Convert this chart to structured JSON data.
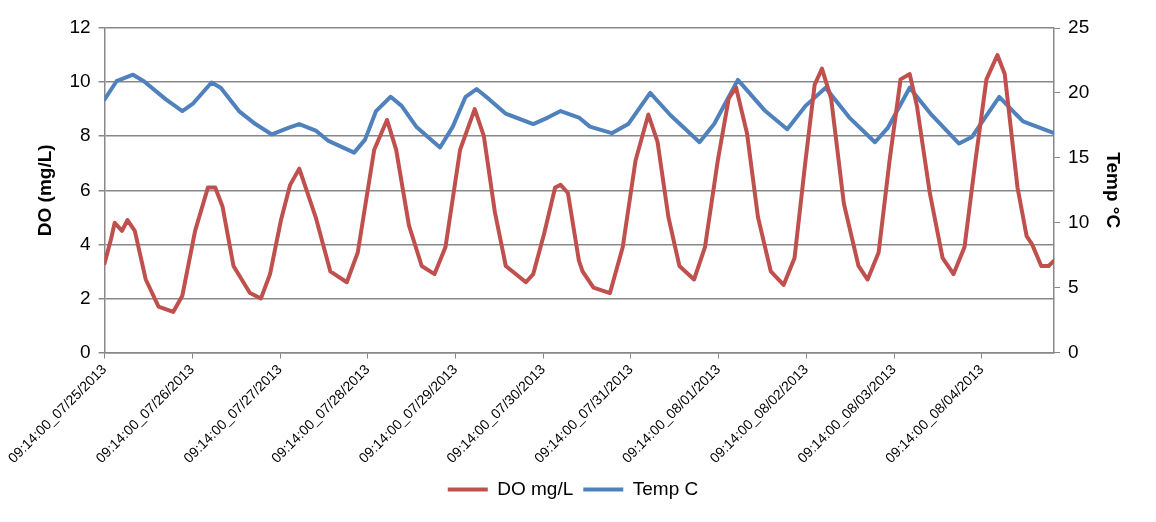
{
  "chart_data": {
    "type": "line",
    "ylabel": "DO (mg/L)",
    "y2label": "Temp °C",
    "xlim": [
      "2013-07-25T09:14",
      "2013-08-05T05:00"
    ],
    "xticks": [
      {
        "value": "2013-07-25T09:14",
        "label": "09:14:00_07/25/2013"
      },
      {
        "value": "2013-07-26T09:14",
        "label": "09:14:00_07/26/2013"
      },
      {
        "value": "2013-07-27T09:14",
        "label": "09:14:00_07/27/2013"
      },
      {
        "value": "2013-07-28T09:14",
        "label": "09:14:00_07/28/2013"
      },
      {
        "value": "2013-07-29T09:14",
        "label": "09:14:00_07/29/2013"
      },
      {
        "value": "2013-07-30T09:14",
        "label": "09:14:00_07/30/2013"
      },
      {
        "value": "2013-07-31T09:14",
        "label": "09:14:00_07/31/2013"
      },
      {
        "value": "2013-08-01T09:14",
        "label": "09:14:00_08/01/2013"
      },
      {
        "value": "2013-08-02T09:14",
        "label": "09:14:00_08/02/2013"
      },
      {
        "value": "2013-08-03T09:14",
        "label": "09:14:00_08/03/2013"
      },
      {
        "value": "2013-08-04T09:14",
        "label": "09:14:00_08/04/2013"
      }
    ],
    "ylim": [
      0,
      12
    ],
    "yticks": [
      0,
      2,
      4,
      6,
      8,
      10,
      12
    ],
    "y2lim": [
      0,
      25
    ],
    "y2ticks": [
      0,
      5,
      10,
      15,
      20,
      25
    ],
    "grid": "y",
    "legend": "bottom",
    "marker": "none",
    "line_style": "solid",
    "series": [
      {
        "name": "DO mg/L",
        "color": "#c0504d",
        "axis": "y",
        "x": [
          "2013-07-25T09:14",
          "2013-07-25T11:00",
          "2013-07-25T12:00",
          "2013-07-25T14:00",
          "2013-07-25T15:30",
          "2013-07-25T17:30",
          "2013-07-25T20:30",
          "2013-07-26T00:00",
          "2013-07-26T04:00",
          "2013-07-26T06:30",
          "2013-07-26T10:00",
          "2013-07-26T13:30",
          "2013-07-26T15:30",
          "2013-07-26T17:30",
          "2013-07-26T20:30",
          "2013-07-27T01:00",
          "2013-07-27T04:00",
          "2013-07-27T06:30",
          "2013-07-27T09:30",
          "2013-07-27T12:00",
          "2013-07-27T14:30",
          "2013-07-27T16:00",
          "2013-07-27T19:00",
          "2013-07-27T23:00",
          "2013-07-28T03:30",
          "2013-07-28T06:30",
          "2013-07-28T11:00",
          "2013-07-28T14:30",
          "2013-07-28T17:00",
          "2013-07-28T20:30",
          "2013-07-29T00:00",
          "2013-07-29T03:30",
          "2013-07-29T06:30",
          "2013-07-29T10:30",
          "2013-07-29T14:30",
          "2013-07-29T17:00",
          "2013-07-29T20:00",
          "2013-07-29T23:00",
          "2013-07-30T04:30",
          "2013-07-30T06:30",
          "2013-07-30T09:30",
          "2013-07-30T12:30",
          "2013-07-30T14:00",
          "2013-07-30T16:00",
          "2013-07-30T19:00",
          "2013-07-30T20:00",
          "2013-07-30T23:00",
          "2013-07-31T03:30",
          "2013-07-31T07:00",
          "2013-07-31T10:30",
          "2013-07-31T14:00",
          "2013-07-31T16:30",
          "2013-07-31T19:30",
          "2013-07-31T22:30",
          "2013-08-01T02:30",
          "2013-08-01T05:30",
          "2013-08-01T09:00",
          "2013-08-01T12:00",
          "2013-08-01T14:00",
          "2013-08-01T17:00",
          "2013-08-01T20:00",
          "2013-08-01T23:30",
          "2013-08-02T03:00",
          "2013-08-02T06:00",
          "2013-08-02T09:00",
          "2013-08-02T11:30",
          "2013-08-02T13:30",
          "2013-08-02T16:00",
          "2013-08-02T19:30",
          "2013-08-02T23:30",
          "2013-08-03T02:00",
          "2013-08-03T05:00",
          "2013-08-03T08:00",
          "2013-08-03T11:00",
          "2013-08-03T13:30",
          "2013-08-03T15:30",
          "2013-08-03T19:00",
          "2013-08-03T22:30",
          "2013-08-04T01:30",
          "2013-08-04T04:30",
          "2013-08-04T07:30",
          "2013-08-04T10:30",
          "2013-08-04T13:30",
          "2013-08-04T15:30",
          "2013-08-04T19:00",
          "2013-08-04T21:30",
          "2013-08-04T23:00",
          "2013-08-05T01:30",
          "2013-08-05T03:30",
          "2013-08-05T05:00"
        ],
        "values": [
          3.3,
          4.2,
          4.8,
          4.5,
          4.9,
          4.5,
          2.7,
          1.7,
          1.5,
          2.1,
          4.5,
          6.1,
          6.1,
          5.4,
          3.2,
          2.2,
          2.0,
          2.9,
          4.9,
          6.2,
          6.8,
          6.2,
          5.0,
          3.0,
          2.6,
          3.7,
          7.5,
          8.6,
          7.5,
          4.7,
          3.2,
          2.9,
          3.9,
          7.5,
          9.0,
          8.0,
          5.2,
          3.2,
          2.6,
          2.9,
          4.4,
          6.1,
          6.2,
          5.9,
          3.4,
          3.0,
          2.4,
          2.2,
          3.9,
          7.1,
          8.8,
          7.8,
          5.0,
          3.2,
          2.7,
          3.9,
          7.1,
          9.4,
          9.8,
          8.1,
          5.0,
          3.0,
          2.5,
          3.5,
          7.1,
          9.9,
          10.5,
          9.4,
          5.5,
          3.2,
          2.7,
          3.7,
          7.1,
          10.1,
          10.3,
          9.1,
          5.9,
          3.5,
          2.9,
          3.9,
          7.1,
          10.1,
          11.0,
          10.3,
          6.1,
          4.3,
          4.0,
          3.2,
          3.2,
          3.4
        ]
      },
      {
        "name": "Temp C",
        "color": "#4f81bd",
        "axis": "y2",
        "x": [
          "2013-07-25T09:14",
          "2013-07-25T12:30",
          "2013-07-25T17:00",
          "2013-07-25T20:00",
          "2013-07-26T02:00",
          "2013-07-26T06:30",
          "2013-07-26T09:30",
          "2013-07-26T14:30",
          "2013-07-26T17:00",
          "2013-07-26T22:00",
          "2013-07-27T02:30",
          "2013-07-27T07:00",
          "2013-07-27T11:30",
          "2013-07-27T14:30",
          "2013-07-27T19:00",
          "2013-07-27T22:30",
          "2013-07-28T05:30",
          "2013-07-28T08:30",
          "2013-07-28T11:30",
          "2013-07-28T15:30",
          "2013-07-28T18:30",
          "2013-07-28T22:30",
          "2013-07-29T05:00",
          "2013-07-29T08:30",
          "2013-07-29T12:00",
          "2013-07-29T15:00",
          "2013-07-29T18:30",
          "2013-07-29T23:00",
          "2013-07-30T06:30",
          "2013-07-30T10:30",
          "2013-07-30T14:00",
          "2013-07-30T19:00",
          "2013-07-30T22:00",
          "2013-07-31T04:00",
          "2013-07-31T08:30",
          "2013-07-31T14:30",
          "2013-07-31T20:00",
          "2013-08-01T04:00",
          "2013-08-01T08:00",
          "2013-08-01T14:30",
          "2013-08-01T22:00",
          "2013-08-02T04:00",
          "2013-08-02T09:00",
          "2013-08-02T14:30",
          "2013-08-02T21:00",
          "2013-08-03T04:00",
          "2013-08-03T07:30",
          "2013-08-03T13:30",
          "2013-08-03T19:30",
          "2013-08-04T03:00",
          "2013-08-04T06:30",
          "2013-08-04T14:00",
          "2013-08-04T20:30",
          "2013-08-05T05:00"
        ],
        "values": [
          19.5,
          20.9,
          21.4,
          20.9,
          19.5,
          18.6,
          19.2,
          20.8,
          20.4,
          18.6,
          17.6,
          16.8,
          17.3,
          17.6,
          17.1,
          16.3,
          15.4,
          16.4,
          18.6,
          19.7,
          19.0,
          17.4,
          15.8,
          17.4,
          19.7,
          20.3,
          19.5,
          18.4,
          17.6,
          18.1,
          18.6,
          18.1,
          17.4,
          16.9,
          17.6,
          20.0,
          18.3,
          16.2,
          17.6,
          21.0,
          18.6,
          17.2,
          19.0,
          20.4,
          18.1,
          16.2,
          17.3,
          20.4,
          18.3,
          16.1,
          16.6,
          19.7,
          17.8,
          16.9
        ]
      }
    ]
  }
}
